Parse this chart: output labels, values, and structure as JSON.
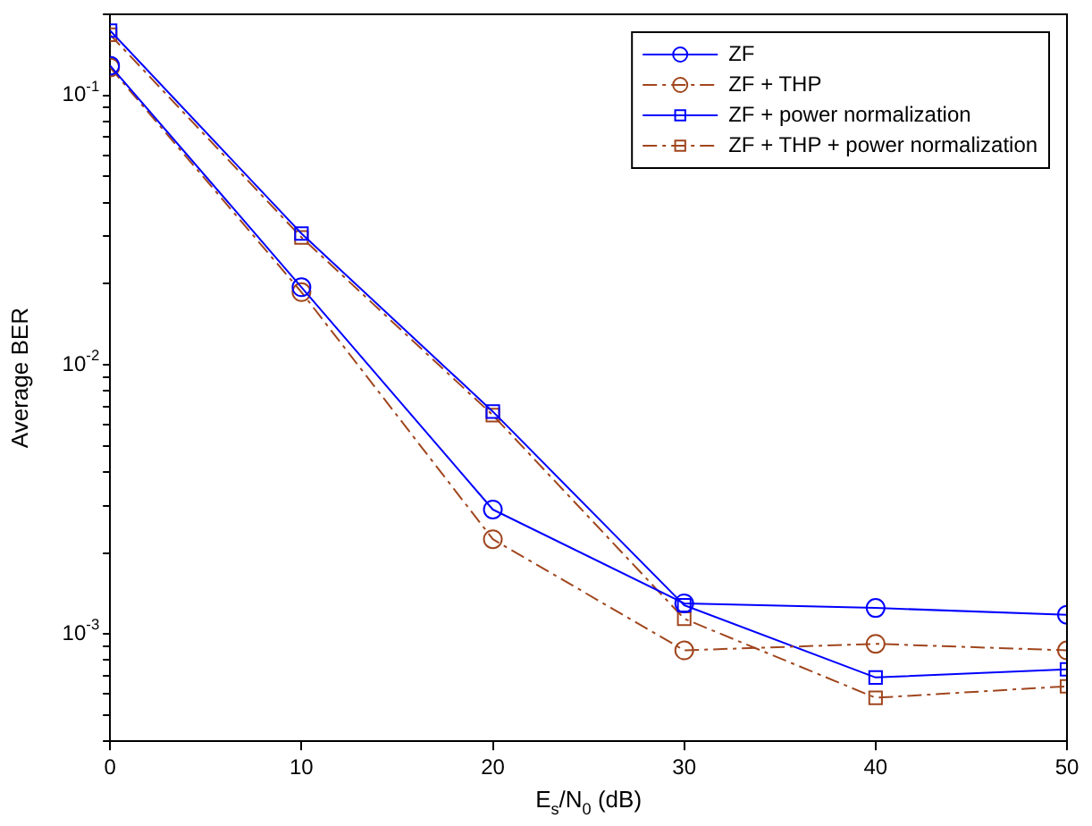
{
  "chart_data": {
    "type": "line",
    "xlabel": "E$_{s}$/N$_{0}$ (dB)",
    "ylabel": "Average BER",
    "log": "y",
    "grid": false,
    "legend": "top right",
    "x": [
      0,
      10,
      20,
      30,
      40,
      50
    ],
    "xlim": [
      0,
      50
    ],
    "xticks": [
      0,
      10,
      20,
      30,
      40,
      50
    ],
    "ylim": [
      0.0004,
      0.2
    ],
    "yticks": [
      {
        "value": 0.0004,
        "label": null
      },
      {
        "value": 0.0005,
        "label": null
      },
      {
        "value": 0.0006,
        "label": null
      },
      {
        "value": 0.0007,
        "label": null
      },
      {
        "value": 0.0008,
        "label": null
      },
      {
        "value": 0.0009,
        "label": null
      },
      {
        "value": 0.001,
        "label": "10$^{-3}$"
      },
      {
        "value": 0.002,
        "label": null
      },
      {
        "value": 0.003,
        "label": null
      },
      {
        "value": 0.004,
        "label": null
      },
      {
        "value": 0.005,
        "label": null
      },
      {
        "value": 0.006,
        "label": null
      },
      {
        "value": 0.007,
        "label": null
      },
      {
        "value": 0.008,
        "label": null
      },
      {
        "value": 0.009,
        "label": null
      },
      {
        "value": 0.01,
        "label": "10$^{-2}$"
      },
      {
        "value": 0.02,
        "label": null
      },
      {
        "value": 0.03,
        "label": null
      },
      {
        "value": 0.04,
        "label": null
      },
      {
        "value": 0.05,
        "label": null
      },
      {
        "value": 0.06,
        "label": null
      },
      {
        "value": 0.07,
        "label": null
      },
      {
        "value": 0.08,
        "label": null
      },
      {
        "value": 0.09,
        "label": null
      },
      {
        "value": 0.1,
        "label": "10$^{-1}$"
      },
      {
        "value": 0.2,
        "label": null
      }
    ],
    "series": [
      {
        "name": "ZF",
        "color": "#0000ff",
        "marker": "circle",
        "line_style": "solid",
        "values": [
          0.129,
          0.0194,
          0.0029,
          0.0013,
          0.00125,
          0.00118
        ]
      },
      {
        "name": "ZF + THP",
        "color": "#a0461e",
        "marker": "circle",
        "line_style": "dashed",
        "values": [
          0.127,
          0.0186,
          0.00225,
          0.00087,
          0.00092,
          0.00087
        ]
      },
      {
        "name": "ZF + power normalization",
        "color": "#0000ff",
        "marker": "square",
        "line_style": "solid",
        "values": [
          0.174,
          0.0307,
          0.0067,
          0.00128,
          0.00069,
          0.00074
        ]
      },
      {
        "name": "ZF + THP + power normalization",
        "color": "#a0461e",
        "marker": "square",
        "line_style": "dashed",
        "values": [
          0.168,
          0.0297,
          0.0065,
          0.00114,
          0.00058,
          0.00064
        ]
      }
    ]
  }
}
